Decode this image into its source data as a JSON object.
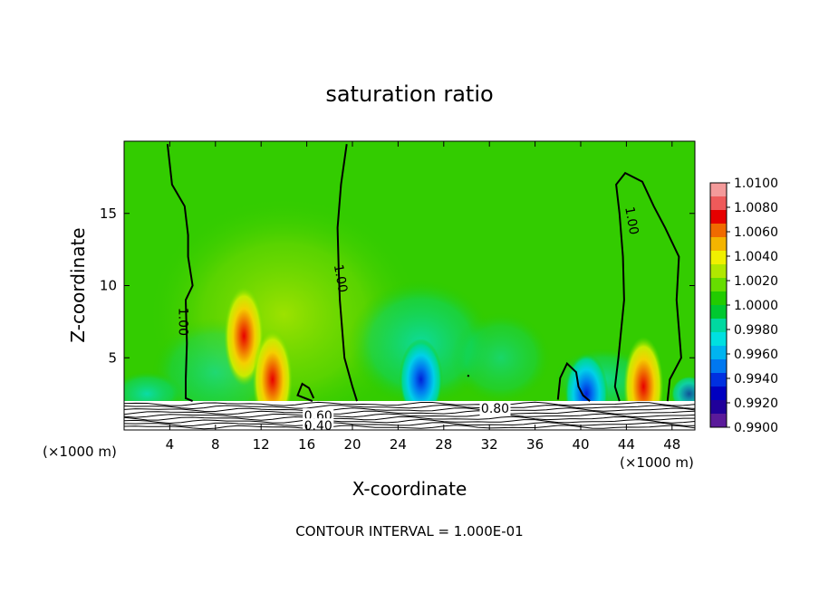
{
  "chart_data": {
    "type": "heatmap",
    "title": "saturation ratio",
    "xlabel": "X-coordinate",
    "ylabel": "Z-coordinate",
    "x_unit_left": "(×1000 m)",
    "x_unit_right": "(×1000 m)",
    "footer": "CONTOUR INTERVAL = 1.000E-01",
    "xlim": [
      0,
      50
    ],
    "ylim": [
      0,
      20
    ],
    "x_ticks": [
      4,
      8,
      12,
      16,
      20,
      24,
      28,
      32,
      36,
      40,
      44,
      48
    ],
    "y_ticks": [
      5,
      10,
      15
    ],
    "colorbar": {
      "labels": [
        "1.0100",
        "1.0080",
        "1.0060",
        "1.0040",
        "1.0020",
        "1.0000",
        "0.9980",
        "0.9960",
        "0.9940",
        "0.9920",
        "0.9900"
      ],
      "colors": [
        "#f49a9a",
        "#ee5a5a",
        "#e60000",
        "#f06a00",
        "#f4b400",
        "#f0f000",
        "#b0e800",
        "#66dd00",
        "#22cc00",
        "#00c830",
        "#00d8a0",
        "#00e0e0",
        "#00b4f0",
        "#0078f0",
        "#0030e0",
        "#0000c0",
        "#20009a",
        "#5a1a9a"
      ]
    },
    "contour_labels": [
      {
        "text": "1.00",
        "x": 5.2,
        "z": 7.5,
        "rotate": 90
      },
      {
        "text": "1.00",
        "x": 19.0,
        "z": 10.5,
        "rotate": 80
      },
      {
        "text": "1.00",
        "x": 44.5,
        "z": 14.5,
        "rotate": 80
      },
      {
        "text": "0.80",
        "x": 32.5,
        "z": 1.5,
        "rotate": 0
      },
      {
        "text": "0.60",
        "x": 17.0,
        "z": 1.0,
        "rotate": 0
      },
      {
        "text": "0.40",
        "x": 17.0,
        "z": 0.3,
        "rotate": 0
      }
    ],
    "features": [
      {
        "kind": "moist",
        "x": 10.5,
        "z": 6.5,
        "value": 1.009
      },
      {
        "kind": "moist",
        "x": 13.0,
        "z": 3.5,
        "value": 1.008
      },
      {
        "kind": "moist",
        "x": 45.5,
        "z": 3.0,
        "value": 1.008
      },
      {
        "kind": "dry",
        "x": 26.0,
        "z": 3.5,
        "value": 0.993
      },
      {
        "kind": "dry",
        "x": 40.5,
        "z": 2.5,
        "value": 0.996
      }
    ]
  }
}
